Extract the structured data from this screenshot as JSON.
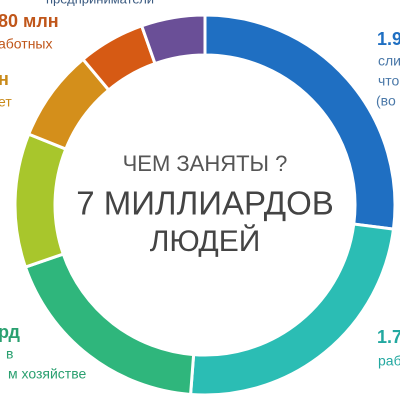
{
  "chart_data": {
    "type": "donut",
    "title": "ЧЕМ ЗАНЯТЫ ?",
    "subtitle": [
      "7 МИЛЛИАРДОВ",
      "ЛЮДЕЙ"
    ],
    "values": [
      1.9,
      1.7,
      1.3,
      0.8,
      0.55,
      0.4,
      0.38
    ],
    "colors": [
      "#1f6fc2",
      "#2bbdb4",
      "#2fb67c",
      "#a8c62c",
      "#d48f1b",
      "#d65a14",
      "#6a4f97"
    ],
    "annotations": [
      {
        "text": "предприниматели",
        "color": "#3a5a80"
      },
      {
        "text": "80 млн",
        "color": "#c0561a"
      },
      {
        "text": "аботных",
        "color": "#c0561a"
      },
      {
        "text": "н",
        "color": "#c98a1a"
      },
      {
        "text": "ет",
        "color": "#c98a1a"
      },
      {
        "text": "1.9",
        "color": "#1f6fc2"
      },
      {
        "text": "сли",
        "color": "#4a78a8"
      },
      {
        "text": "что",
        "color": "#4a78a8"
      },
      {
        "text": "(во",
        "color": "#4a78a8"
      },
      {
        "text": "1.7",
        "color": "#22a8a0"
      },
      {
        "text": "раб",
        "color": "#22a8a0"
      },
      {
        "text": "рд",
        "color": "#2aa070"
      },
      {
        "text": "в",
        "color": "#2aa070"
      },
      {
        "text": "м хозяйстве",
        "color": "#2aa070"
      }
    ]
  }
}
